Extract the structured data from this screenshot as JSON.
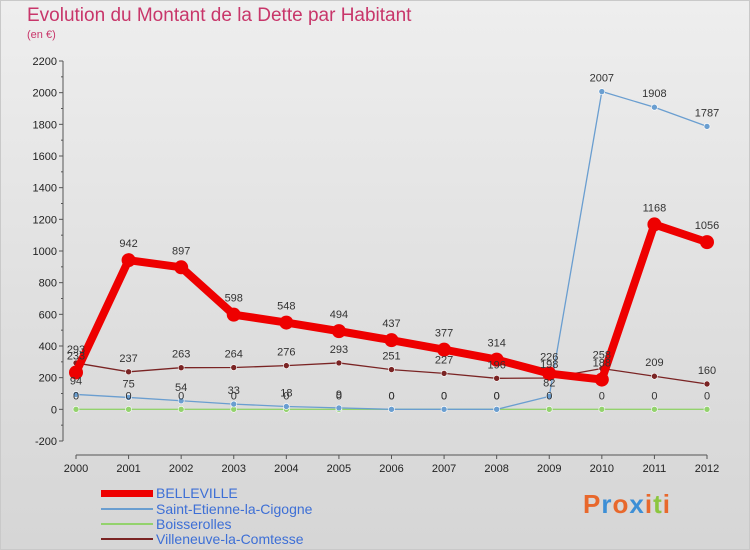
{
  "title": "Evolution du Montant de la Dette par Habitant",
  "subtitle": "(en €)",
  "brand": {
    "letters": [
      "P",
      "r",
      "o",
      "x",
      "i",
      "t",
      "i"
    ],
    "colors": [
      "#e8682c",
      "#3d8fd6",
      "#e8682c",
      "#3d8fd6",
      "#e8682c",
      "#8cc63f",
      "#e8682c"
    ]
  },
  "chart_data": {
    "type": "line",
    "title": "Evolution du Montant de la Dette par Habitant",
    "ylabel": "(en €)",
    "xlabel": "",
    "ylim": [
      -200,
      2200
    ],
    "yticks": [
      -200,
      0,
      200,
      400,
      600,
      800,
      1000,
      1200,
      1400,
      1600,
      1800,
      2000,
      2200
    ],
    "grid": false,
    "legend_position": "bottom-left",
    "categories": [
      "2000",
      "2001",
      "2002",
      "2003",
      "2004",
      "2005",
      "2006",
      "2007",
      "2008",
      "2009",
      "2010",
      "2011",
      "2012"
    ],
    "series": [
      {
        "name": "BELLEVILLE",
        "color": "#ee0000",
        "values": [
          233,
          942,
          897,
          598,
          548,
          494,
          437,
          377,
          314,
          226,
          188,
          1168,
          1056
        ],
        "labels": [
          "233",
          "942",
          "897",
          "598",
          "548",
          "494",
          "437",
          "377",
          "314",
          "226",
          "188",
          "1168",
          "1056"
        ]
      },
      {
        "name": "Saint-Etienne-la-Cigogne",
        "color": "#6a9ed0",
        "values": [
          94,
          75,
          54,
          33,
          18,
          9,
          0,
          0,
          0,
          82,
          2007,
          1908,
          1787
        ],
        "labels": [
          "94",
          "75",
          "54",
          "33",
          "18",
          "9",
          "0",
          "0",
          "0",
          "82",
          "2007",
          "1908",
          "1787"
        ]
      },
      {
        "name": "Boisserolles",
        "color": "#93d26d",
        "values": [
          0,
          0,
          0,
          0,
          0,
          0,
          0,
          0,
          0,
          0,
          0,
          0,
          0
        ],
        "labels": [
          "0",
          "0",
          "0",
          "0",
          "0",
          "0",
          "0",
          "0",
          "0",
          "0",
          "0",
          "0",
          "0"
        ]
      },
      {
        "name": "Villeneuve-la-Comtesse",
        "color": "#7a2424",
        "values": [
          293,
          237,
          263,
          264,
          276,
          293,
          251,
          227,
          196,
          198,
          258,
          209,
          160
        ],
        "labels": [
          "293",
          "237",
          "263",
          "264",
          "276",
          "293",
          "251",
          "227",
          "196",
          "198",
          "258",
          "209",
          "160"
        ]
      }
    ]
  }
}
